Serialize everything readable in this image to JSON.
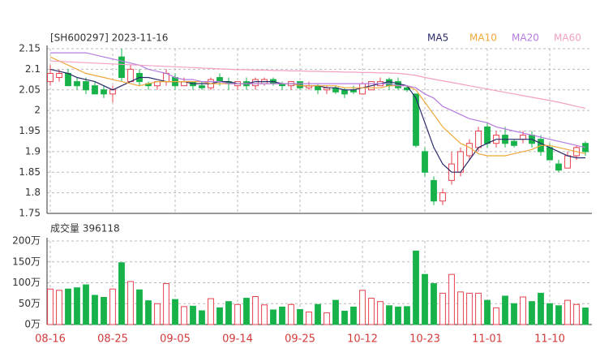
{
  "chart_data": {
    "type": "candlestick",
    "title": "[SH600297] 2023-11-16",
    "categories": [
      "08-16",
      null,
      null,
      null,
      null,
      null,
      null,
      "08-25",
      null,
      null,
      null,
      null,
      null,
      null,
      "09-05",
      null,
      null,
      null,
      null,
      null,
      null,
      "09-14",
      null,
      null,
      null,
      null,
      null,
      null,
      "09-25",
      null,
      null,
      null,
      null,
      null,
      null,
      "10-12",
      null,
      null,
      null,
      null,
      null,
      null,
      "10-23",
      null,
      null,
      null,
      null,
      null,
      null,
      "11-01",
      null,
      null,
      null,
      null,
      null,
      null,
      "11-10",
      null,
      null,
      null,
      null
    ],
    "open": [
      2.07,
      2.08,
      2.09,
      2.07,
      2.07,
      2.06,
      2.05,
      2.04,
      2.13,
      2.07,
      2.09,
      2.065,
      2.06,
      2.07,
      2.08,
      2.06,
      2.07,
      2.06,
      2.055,
      2.08,
      2.07,
      2.06,
      2.07,
      2.06,
      2.065,
      2.075,
      2.065,
      2.06,
      2.07,
      2.055,
      2.06,
      2.05,
      2.055,
      2.05,
      2.05,
      2.04,
      2.05,
      2.06,
      2.075,
      2.07,
      2.055,
      2.04,
      1.9,
      1.83,
      1.78,
      1.83,
      1.85,
      1.89,
      1.91,
      1.96,
      1.92,
      1.94,
      1.925,
      1.93,
      1.94,
      1.93,
      1.91,
      1.87,
      1.86,
      1.89,
      1.92
    ],
    "high": [
      2.11,
      2.1,
      2.1,
      2.08,
      2.08,
      2.07,
      2.06,
      2.06,
      2.15,
      2.11,
      2.1,
      2.07,
      2.07,
      2.1,
      2.09,
      2.08,
      2.07,
      2.07,
      2.08,
      2.09,
      2.08,
      2.07,
      2.08,
      2.08,
      2.08,
      2.08,
      2.07,
      2.07,
      2.07,
      2.07,
      2.065,
      2.06,
      2.06,
      2.055,
      2.06,
      2.07,
      2.07,
      2.08,
      2.08,
      2.08,
      2.06,
      2.04,
      1.91,
      1.84,
      1.81,
      1.9,
      1.91,
      1.93,
      1.96,
      1.97,
      1.95,
      1.96,
      1.93,
      1.95,
      1.95,
      1.94,
      1.92,
      1.88,
      1.9,
      1.915,
      1.925
    ],
    "low": [
      2.06,
      2.07,
      2.06,
      2.05,
      2.04,
      2.04,
      2.03,
      2.02,
      2.07,
      2.07,
      2.06,
      2.05,
      2.05,
      2.06,
      2.05,
      2.06,
      2.05,
      2.05,
      2.05,
      2.06,
      2.05,
      2.05,
      2.05,
      2.05,
      2.06,
      2.06,
      2.05,
      2.05,
      2.05,
      2.05,
      2.04,
      2.04,
      2.04,
      2.03,
      2.04,
      2.04,
      2.05,
      2.06,
      2.05,
      2.05,
      2.045,
      1.91,
      1.84,
      1.77,
      1.77,
      1.82,
      1.84,
      1.88,
      1.9,
      1.91,
      1.91,
      1.91,
      1.91,
      1.92,
      1.91,
      1.89,
      1.88,
      1.85,
      1.86,
      1.88,
      1.89
    ],
    "close": [
      2.09,
      2.09,
      2.06,
      2.06,
      2.05,
      2.04,
      2.04,
      2.05,
      2.08,
      2.1,
      2.07,
      2.06,
      2.07,
      2.09,
      2.06,
      2.07,
      2.06,
      2.055,
      2.075,
      2.07,
      2.065,
      2.07,
      2.06,
      2.075,
      2.075,
      2.065,
      2.06,
      2.07,
      2.055,
      2.06,
      2.05,
      2.055,
      2.045,
      2.04,
      2.045,
      2.065,
      2.07,
      2.07,
      2.06,
      2.055,
      2.05,
      1.915,
      1.85,
      1.78,
      1.8,
      1.87,
      1.9,
      1.92,
      1.95,
      1.92,
      1.94,
      1.92,
      1.915,
      1.94,
      1.92,
      1.9,
      1.88,
      1.855,
      1.89,
      1.91,
      1.9
    ],
    "up_color": "#e8414e",
    "down_color": "#17b34a",
    "ylim": [
      1.75,
      2.15
    ],
    "yticks": [
      1.75,
      1.8,
      1.85,
      1.9,
      1.95,
      2,
      2.05,
      2.1,
      2.15
    ],
    "grid": true,
    "ma": [
      {
        "name": "MA5",
        "color": "#2a2a6a",
        "values": [
          2.1,
          2.095,
          2.09,
          2.08,
          2.075,
          2.07,
          2.06,
          2.05,
          2.06,
          2.07,
          2.08,
          2.08,
          2.075,
          2.07,
          2.07,
          2.07,
          2.065,
          2.065,
          2.065,
          2.07,
          2.07,
          2.065,
          2.065,
          2.07,
          2.07,
          2.07,
          2.065,
          2.065,
          2.06,
          2.06,
          2.06,
          2.055,
          2.055,
          2.05,
          2.05,
          2.055,
          2.06,
          2.065,
          2.07,
          2.065,
          2.06,
          2.03,
          1.97,
          1.91,
          1.87,
          1.85,
          1.85,
          1.88,
          1.91,
          1.92,
          1.93,
          1.93,
          1.93,
          1.93,
          1.93,
          1.92,
          1.91,
          1.9,
          1.89,
          1.885,
          1.885
        ]
      },
      {
        "name": "MA10",
        "color": "#f0a83a",
        "values": [
          2.13,
          2.12,
          2.11,
          2.1,
          2.09,
          2.085,
          2.08,
          2.075,
          2.07,
          2.065,
          2.06,
          2.065,
          2.07,
          2.07,
          2.07,
          2.07,
          2.07,
          2.07,
          2.065,
          2.065,
          2.065,
          2.065,
          2.065,
          2.065,
          2.065,
          2.065,
          2.065,
          2.065,
          2.06,
          2.06,
          2.06,
          2.06,
          2.06,
          2.055,
          2.055,
          2.055,
          2.055,
          2.055,
          2.06,
          2.06,
          2.06,
          2.05,
          2.02,
          1.99,
          1.96,
          1.94,
          1.92,
          1.91,
          1.895,
          1.89,
          1.89,
          1.89,
          1.895,
          1.9,
          1.905,
          1.915,
          1.915,
          1.91,
          1.905,
          1.9,
          1.895
        ]
      },
      {
        "name": "MA20",
        "color": "#b57be0",
        "values": [
          2.14,
          2.14,
          2.14,
          2.14,
          2.14,
          2.135,
          2.13,
          2.125,
          2.12,
          2.115,
          2.11,
          2.1,
          2.095,
          2.09,
          2.08,
          2.075,
          2.075,
          2.07,
          2.07,
          2.07,
          2.065,
          2.065,
          2.065,
          2.065,
          2.065,
          2.065,
          2.065,
          2.065,
          2.065,
          2.065,
          2.065,
          2.065,
          2.065,
          2.065,
          2.065,
          2.065,
          2.065,
          2.065,
          2.065,
          2.06,
          2.06,
          2.055,
          2.04,
          2.03,
          2.01,
          2.0,
          1.99,
          1.98,
          1.975,
          1.97,
          1.96,
          1.955,
          1.95,
          1.945,
          1.94,
          1.935,
          1.93,
          1.925,
          1.92,
          1.915,
          1.91
        ]
      },
      {
        "name": "MA60",
        "color": "#f3a0c4",
        "values": [
          2.12,
          2.119,
          2.118,
          2.117,
          2.116,
          2.115,
          2.114,
          2.113,
          2.112,
          2.111,
          2.11,
          2.109,
          2.108,
          2.107,
          2.106,
          2.105,
          2.104,
          2.103,
          2.102,
          2.101,
          2.1,
          2.099,
          2.099,
          2.098,
          2.098,
          2.097,
          2.097,
          2.096,
          2.096,
          2.095,
          2.095,
          2.094,
          2.094,
          2.093,
          2.093,
          2.092,
          2.092,
          2.091,
          2.091,
          2.09,
          2.088,
          2.085,
          2.08,
          2.076,
          2.072,
          2.068,
          2.064,
          2.06,
          2.056,
          2.052,
          2.048,
          2.044,
          2.04,
          2.036,
          2.032,
          2.028,
          2.024,
          2.02,
          2.015,
          2.01,
          2.005
        ]
      }
    ],
    "volume": {
      "title": "成交量 396118",
      "values": [
        85,
        82,
        85,
        88,
        95,
        70,
        65,
        85,
        148,
        103,
        83,
        57,
        50,
        98,
        60,
        43,
        44,
        33,
        62,
        40,
        55,
        48,
        63,
        67,
        47,
        35,
        42,
        48,
        36,
        30,
        48,
        28,
        58,
        32,
        42,
        82,
        63,
        55,
        45,
        42,
        43,
        176,
        120,
        98,
        75,
        120,
        78,
        75,
        75,
        58,
        40,
        68,
        50,
        66,
        55,
        75,
        50,
        45,
        58,
        48,
        39.6118
      ],
      "ylim": [
        0,
        200
      ],
      "yticks": [
        {
          "value": 0,
          "label": "0万"
        },
        {
          "value": 50,
          "label": "50万"
        },
        {
          "value": 100,
          "label": "100万"
        },
        {
          "value": 150,
          "label": "150万"
        },
        {
          "value": 200,
          "label": "200万"
        }
      ]
    }
  }
}
